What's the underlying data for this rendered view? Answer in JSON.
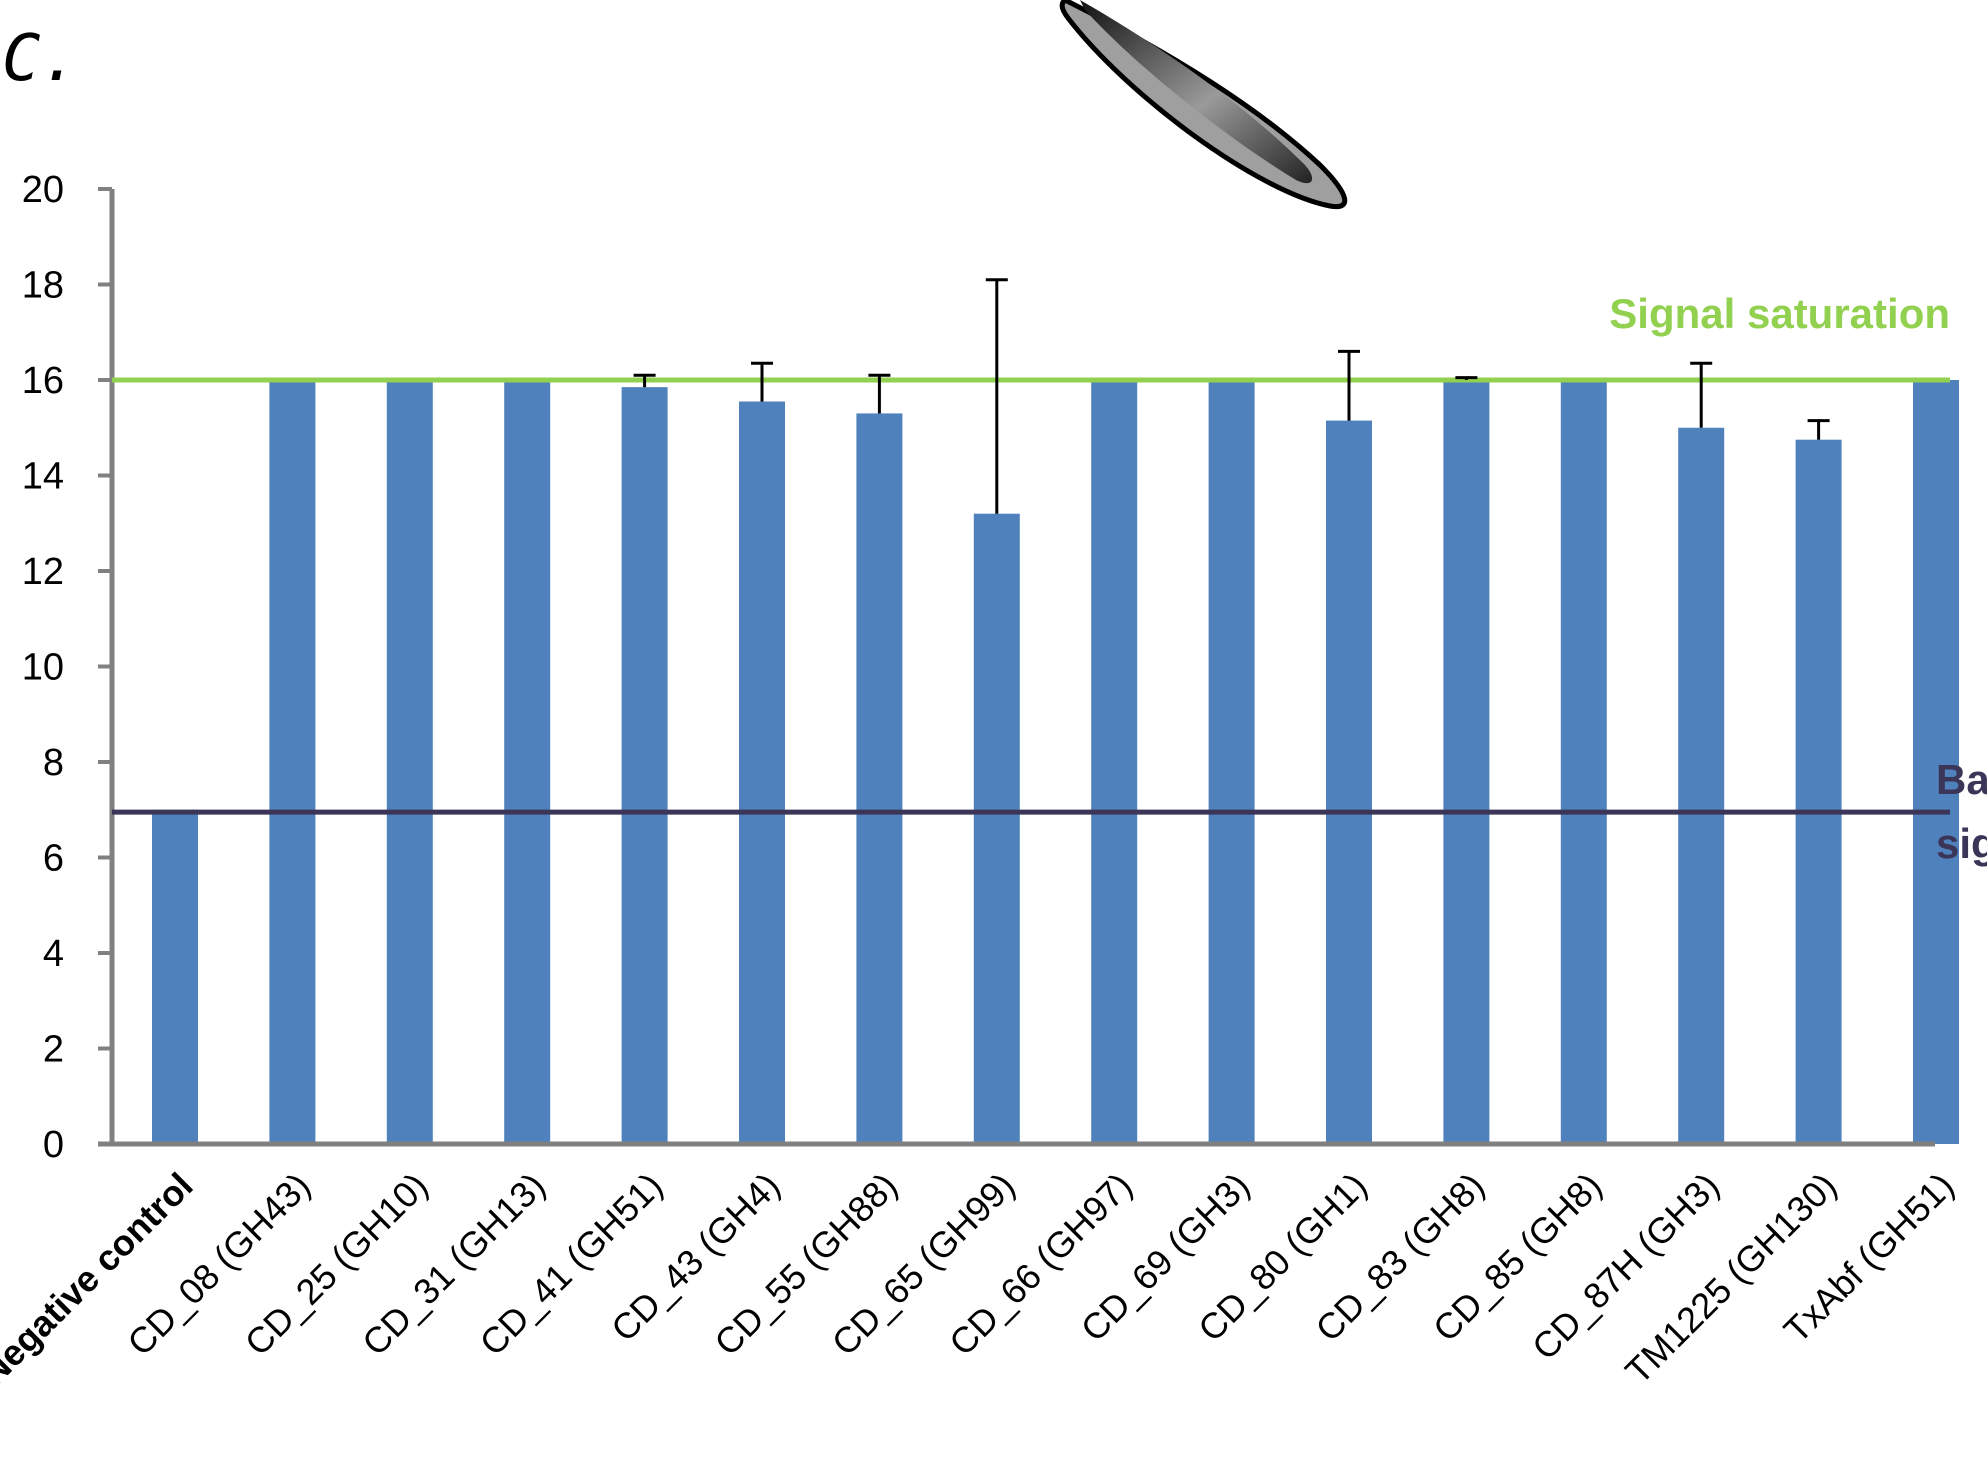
{
  "panel_label": "C.",
  "colors": {
    "bar": "#4F81BD",
    "saturation_line": "#92D050",
    "background_line": "#3B3558",
    "axis": "#808080",
    "error_bar": "#000000"
  },
  "chart_data": {
    "type": "bar",
    "title": "",
    "xlabel": "",
    "ylabel": "",
    "ylim": [
      0,
      20
    ],
    "yticks": [
      0,
      2,
      4,
      6,
      8,
      10,
      12,
      14,
      16,
      18,
      20
    ],
    "grid": false,
    "categories": [
      "Negative control",
      "CD_08 (GH43)",
      "CD_25 (GH10)",
      "CD_31 (GH13)",
      "CD_41 (GH51)",
      "CD_43 (GH4)",
      "CD_55 (GH88)",
      "CD_65 (GH99)",
      "CD_66 (GH97)",
      "CD_69 (GH3)",
      "CD_80 (GH1)",
      "CD_83 (GH8)",
      "CD_85 (GH8)",
      "CD_87H (GH3)",
      "TM1225 (GH130)",
      "TxAbf (GH51)"
    ],
    "values": [
      7.0,
      16.0,
      16.0,
      16.0,
      15.85,
      15.55,
      15.3,
      13.2,
      16.0,
      16.0,
      15.15,
      16.0,
      16.0,
      15.0,
      14.75,
      16.0
    ],
    "errors": [
      0,
      0,
      0,
      0,
      0.25,
      0.8,
      0.8,
      4.9,
      0,
      0,
      1.45,
      0.05,
      0,
      1.35,
      0.4,
      0
    ],
    "reference_lines": [
      {
        "label": "Signal saturation",
        "value": 16.0
      },
      {
        "label": "Background signal",
        "value": 6.95
      }
    ]
  }
}
